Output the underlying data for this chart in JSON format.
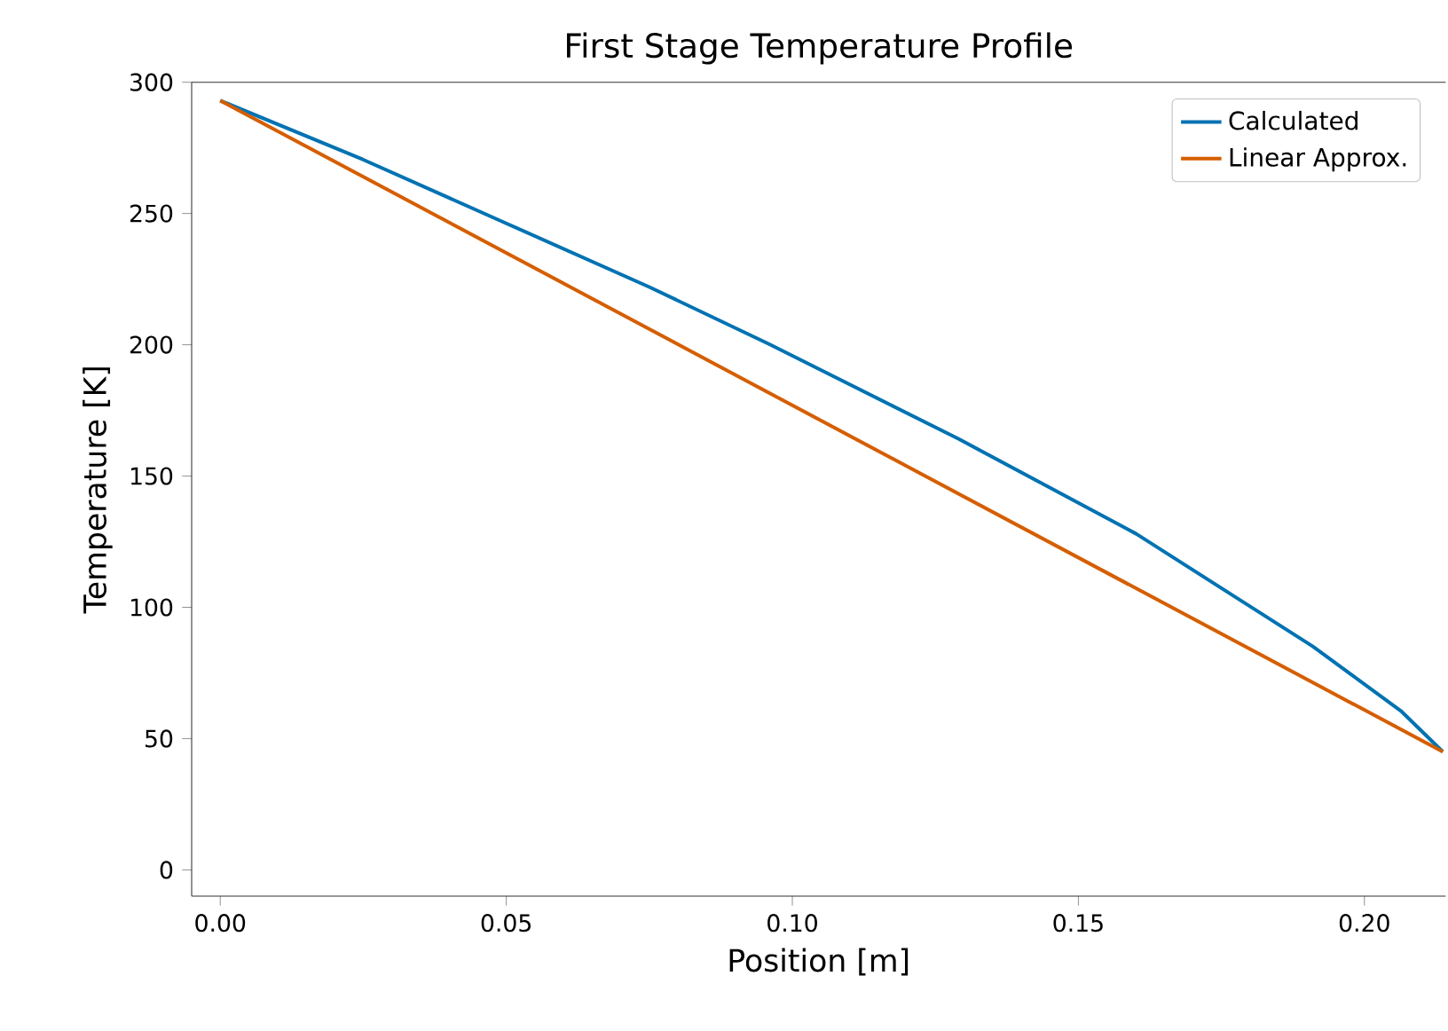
{
  "chart_data": {
    "type": "line",
    "title": "First Stage Temperature Profile",
    "xlabel": "Position [m]",
    "ylabel": "Temperature [K]",
    "xlim": [
      -0.005,
      0.2142
    ],
    "ylim": [
      -10,
      300
    ],
    "xticks": [
      {
        "value": 0,
        "label": "0.00"
      },
      {
        "value": 0.05,
        "label": "0.05"
      },
      {
        "value": 0.1,
        "label": "0.10"
      },
      {
        "value": 0.15,
        "label": "0.15"
      },
      {
        "value": 0.2,
        "label": "0.20"
      }
    ],
    "yticks": [
      0,
      50,
      100,
      150,
      200,
      250,
      300
    ],
    "legend": "top right",
    "grid": false,
    "line_style": "solid",
    "series": [
      {
        "name": "Calculated",
        "color": "#0072b2",
        "x": [
          0,
          0.025,
          0.0486,
          0.075,
          0.096,
          0.1291,
          0.1601,
          0.191,
          0.2065,
          0.2137
        ],
        "values": [
          293,
          270.5,
          247.6,
          222,
          200.2,
          164.1,
          128,
          85.1,
          60.3,
          45
        ]
      },
      {
        "name": "Linear Approx.",
        "color": "#d55e00",
        "x": [
          0,
          0.2137
        ],
        "values": [
          293,
          45
        ]
      }
    ]
  }
}
